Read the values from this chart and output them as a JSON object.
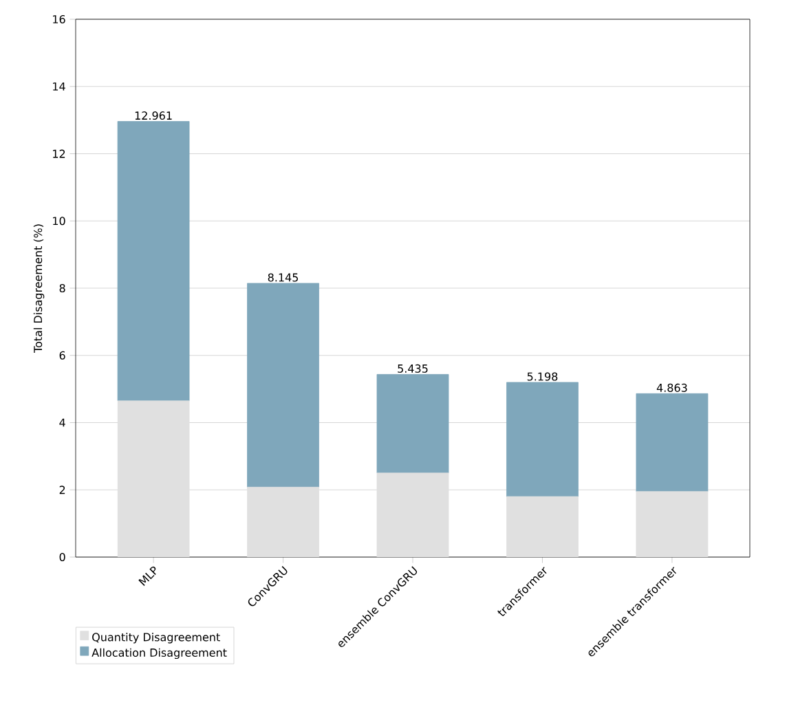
{
  "chart_data": {
    "type": "bar",
    "stacked": true,
    "ylabel": "Total Disagreement (%)",
    "categories": [
      "MLP",
      "ConvGRU",
      "ensemble ConvGRU",
      "transformer",
      "ensemble transformer"
    ],
    "series": [
      {
        "name": "Quantity Disagreement",
        "color": "#e0e0e0",
        "values": [
          4.65,
          2.08,
          2.5,
          1.8,
          1.95
        ]
      },
      {
        "name": "Allocation Disagreement",
        "color": "#7fa7bb",
        "values": [
          8.311,
          6.065,
          2.935,
          3.398,
          2.913
        ]
      }
    ],
    "totals": [
      "12.961",
      "8.145",
      "5.435",
      "5.198",
      "4.863"
    ],
    "ylim": [
      0,
      16
    ],
    "yticks": [
      0,
      2,
      4,
      6,
      8,
      10,
      12,
      14,
      16
    ],
    "grid": "y",
    "legend": "bottom left"
  }
}
